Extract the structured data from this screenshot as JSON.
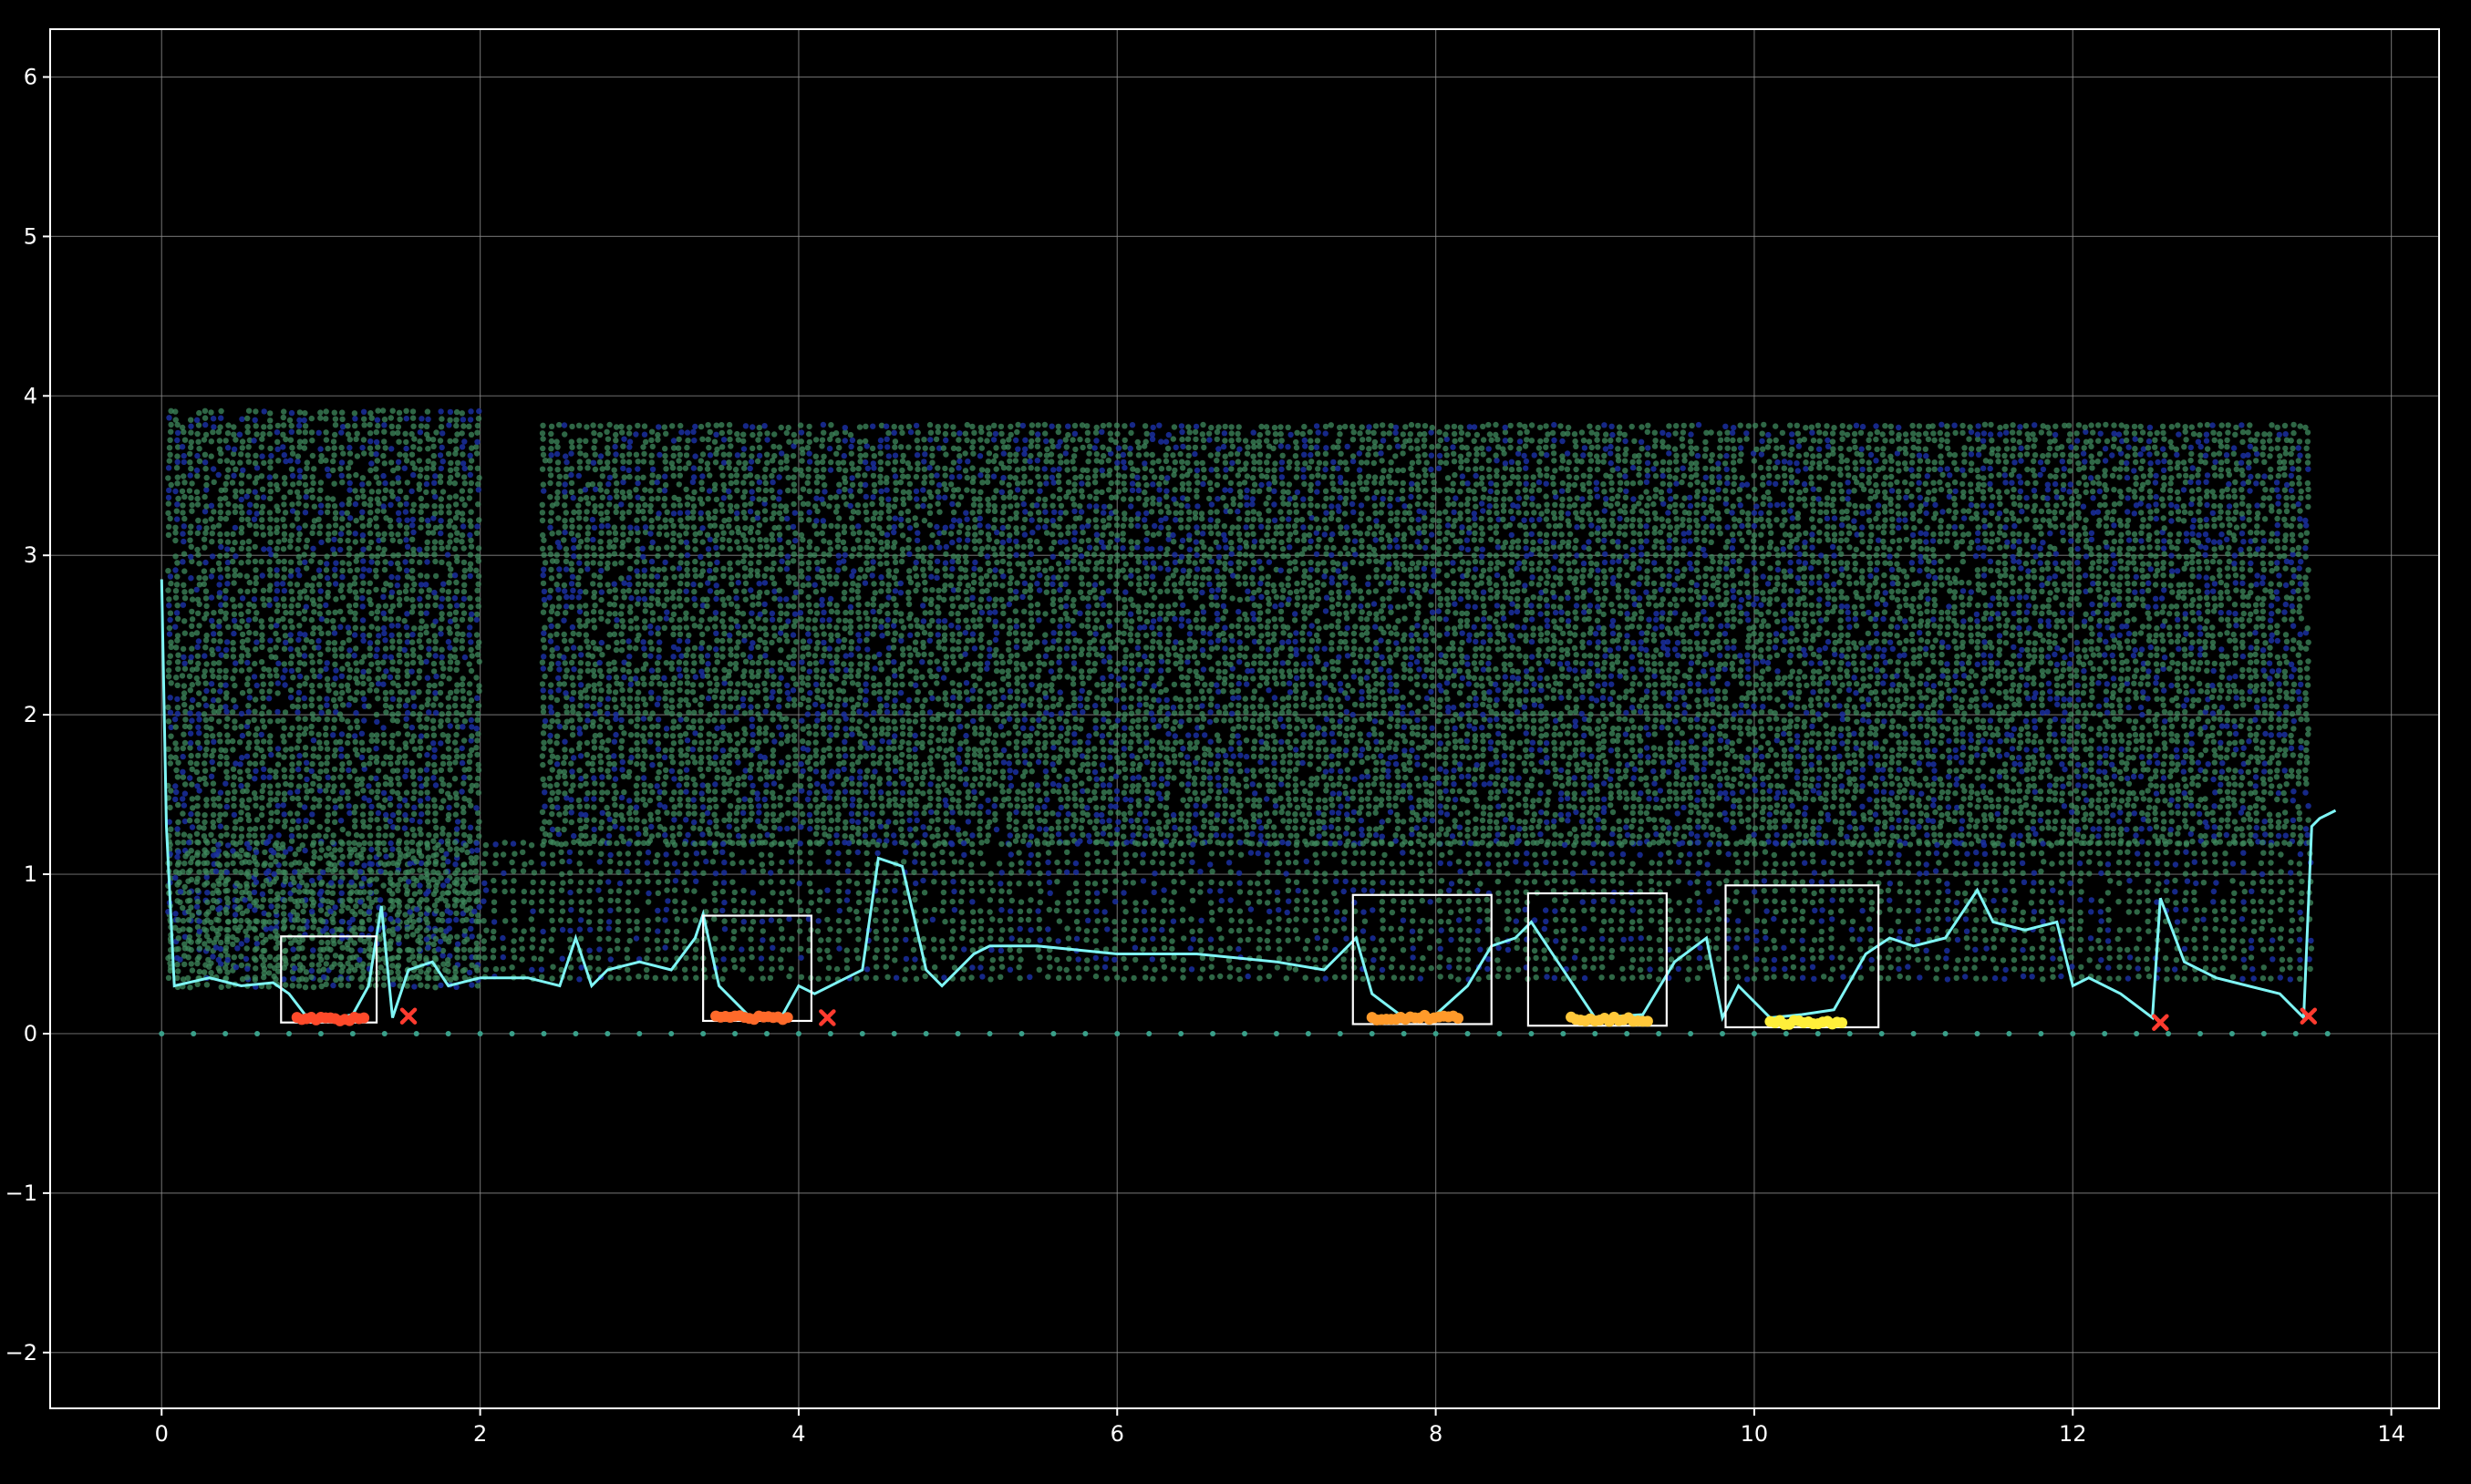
{
  "chart_data": {
    "type": "scatter",
    "title": "",
    "xlabel": "",
    "ylabel": "",
    "xlim": [
      -0.7,
      14.3
    ],
    "ylim": [
      -2.35,
      6.3
    ],
    "grid": true,
    "x_ticks": [
      0,
      2,
      4,
      6,
      8,
      10,
      12,
      14
    ],
    "x_tick_labels": [
      "0",
      "2",
      "4",
      "6",
      "8",
      "10",
      "12",
      "14"
    ],
    "y_ticks": [
      -2,
      -1,
      0,
      1,
      2,
      3,
      4,
      5,
      6
    ],
    "y_tick_labels": [
      "−2",
      "−1",
      "0",
      "1",
      "2",
      "3",
      "4",
      "5",
      "6"
    ],
    "colors": {
      "background": "#000000",
      "grid": "#8a8a8a",
      "axes": "#ffffff",
      "point_cloud_green": "#3f8a5e",
      "point_cloud_blue": "#1a2fa0",
      "profile_line": "#7ff5f5",
      "ground_points": "#3aa08a",
      "boxes": "#ffffff",
      "red_markers": "#ff3b2f"
    },
    "point_cloud_regions": [
      {
        "name": "cab",
        "x0": 0.05,
        "x1": 2.0,
        "y0": 0.3,
        "y1": 3.9,
        "density": "high"
      },
      {
        "name": "tank",
        "x0": 2.4,
        "x1": 13.5,
        "y0": 1.2,
        "y1": 3.85,
        "density": "high"
      },
      {
        "name": "chassis",
        "x0": 0.05,
        "x1": 13.5,
        "y0": 0.35,
        "y1": 1.2,
        "density": "medium"
      }
    ],
    "profile_line": {
      "x": [
        0.0,
        0.03,
        0.08,
        0.3,
        0.5,
        0.7,
        0.8,
        0.9,
        1.0,
        1.1,
        1.2,
        1.3,
        1.38,
        1.45,
        1.55,
        1.7,
        1.8,
        2.0,
        2.3,
        2.5,
        2.6,
        2.7,
        2.8,
        3.0,
        3.2,
        3.35,
        3.4,
        3.5,
        3.7,
        3.9,
        4.0,
        4.1,
        4.3,
        4.4,
        4.5,
        4.65,
        4.8,
        4.9,
        5.0,
        5.1,
        5.2,
        5.5,
        6.0,
        6.5,
        7.0,
        7.3,
        7.5,
        7.6,
        7.8,
        8.0,
        8.2,
        8.35,
        8.5,
        8.6,
        8.7,
        9.0,
        9.3,
        9.5,
        9.7,
        9.8,
        9.9,
        10.1,
        10.3,
        10.5,
        10.7,
        10.85,
        11.0,
        11.2,
        11.4,
        11.5,
        11.7,
        11.9,
        12.0,
        12.1,
        12.3,
        12.5,
        12.55,
        12.7,
        12.8,
        12.9,
        13.1,
        13.3,
        13.45,
        13.5,
        13.55,
        13.65
      ],
      "y": [
        2.85,
        1.3,
        0.3,
        0.35,
        0.3,
        0.32,
        0.25,
        0.12,
        0.1,
        0.1,
        0.12,
        0.3,
        0.8,
        0.1,
        0.4,
        0.45,
        0.3,
        0.35,
        0.35,
        0.3,
        0.6,
        0.3,
        0.4,
        0.45,
        0.4,
        0.6,
        0.75,
        0.3,
        0.1,
        0.12,
        0.3,
        0.25,
        0.35,
        0.4,
        1.1,
        1.05,
        0.4,
        0.3,
        0.4,
        0.5,
        0.55,
        0.55,
        0.5,
        0.5,
        0.45,
        0.4,
        0.6,
        0.25,
        0.1,
        0.12,
        0.3,
        0.55,
        0.6,
        0.7,
        0.55,
        0.1,
        0.12,
        0.45,
        0.6,
        0.1,
        0.3,
        0.1,
        0.12,
        0.15,
        0.5,
        0.6,
        0.55,
        0.6,
        0.9,
        0.7,
        0.65,
        0.7,
        0.3,
        0.35,
        0.25,
        0.1,
        0.85,
        0.45,
        0.4,
        0.35,
        0.3,
        0.25,
        0.1,
        1.3,
        1.35,
        1.4
      ]
    },
    "ground_points": {
      "x0": 0.0,
      "x1": 13.65,
      "step": 0.2,
      "y": 0.0
    },
    "boxes": [
      {
        "x0": 0.75,
        "x1": 1.35,
        "y0": 0.07,
        "y1": 0.61
      },
      {
        "x0": 3.4,
        "x1": 4.08,
        "y0": 0.08,
        "y1": 0.74
      },
      {
        "x0": 7.48,
        "x1": 8.35,
        "y0": 0.06,
        "y1": 0.87
      },
      {
        "x0": 8.58,
        "x1": 9.45,
        "y0": 0.05,
        "y1": 0.88
      },
      {
        "x0": 9.82,
        "x1": 10.78,
        "y0": 0.04,
        "y1": 0.93
      }
    ],
    "contact_clusters": [
      {
        "x0": 0.85,
        "x1": 1.28,
        "y": 0.09,
        "color": "#ff4a2a"
      },
      {
        "x0": 3.48,
        "x1": 3.95,
        "y": 0.1,
        "color": "#ff6a2a"
      },
      {
        "x0": 7.6,
        "x1": 8.15,
        "y": 0.1,
        "color": "#ff9a2a"
      },
      {
        "x0": 8.85,
        "x1": 9.35,
        "y": 0.09,
        "color": "#ffc83a"
      },
      {
        "x0": 10.1,
        "x1": 10.55,
        "y": 0.07,
        "color": "#ffef3a"
      }
    ],
    "x_markers": [
      {
        "x": 1.55,
        "y": 0.11
      },
      {
        "x": 4.18,
        "y": 0.1
      },
      {
        "x": 12.55,
        "y": 0.07
      },
      {
        "x": 13.48,
        "y": 0.11
      }
    ]
  }
}
